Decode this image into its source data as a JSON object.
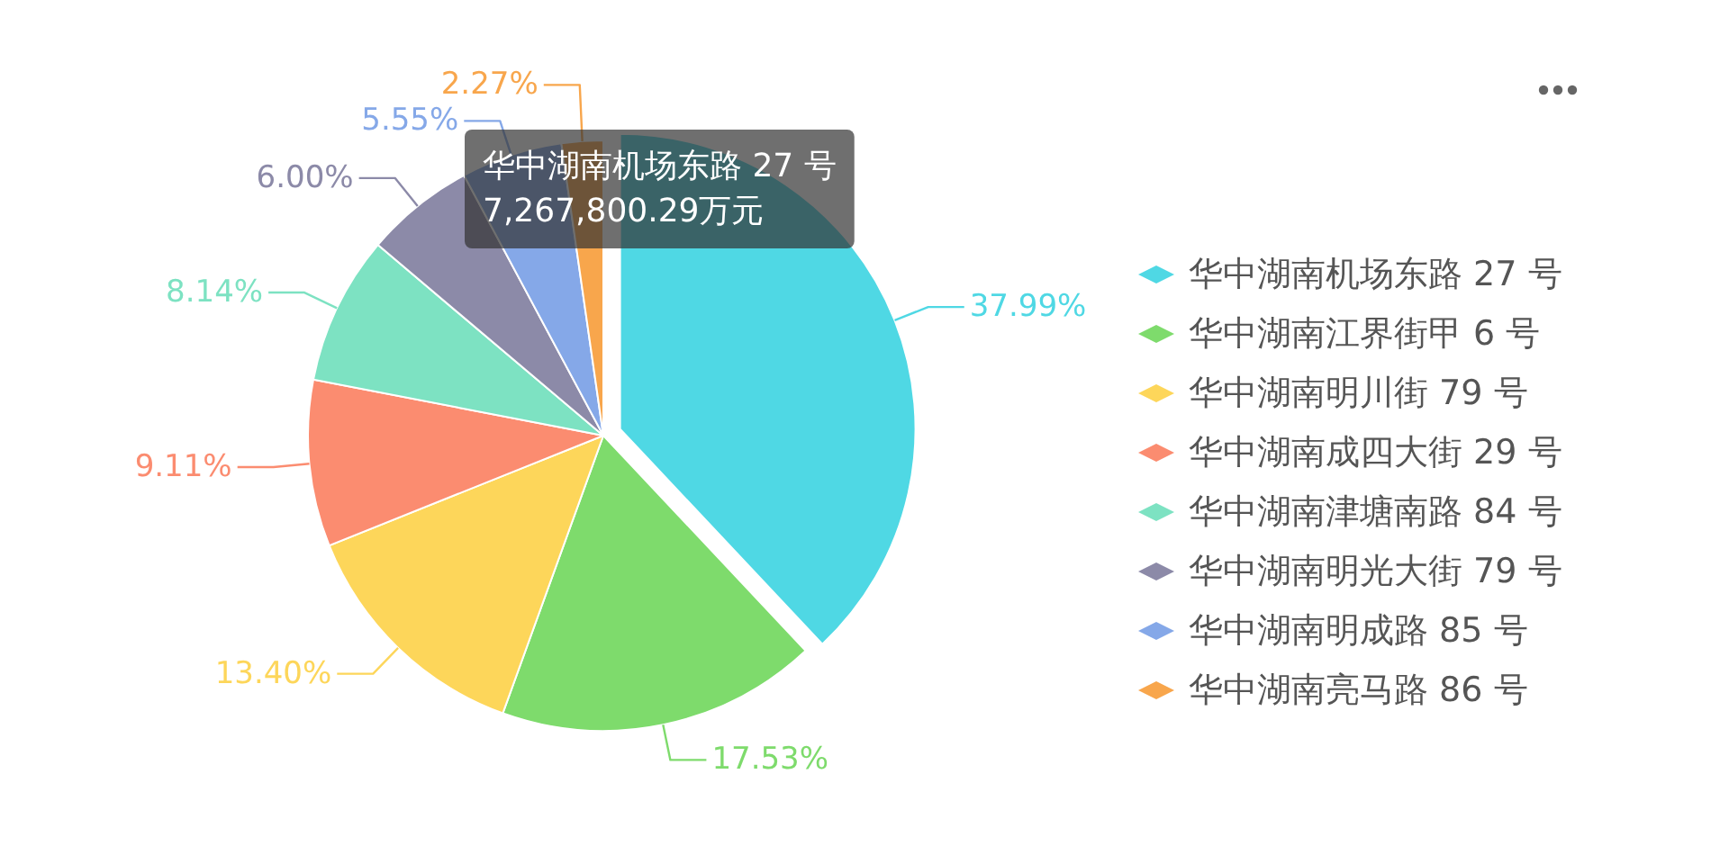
{
  "chart_data": {
    "type": "pie",
    "categories": [
      "华中湖南机场东路 27 号",
      "华中湖南江界街甲 6 号",
      "华中湖南明川街 79 号",
      "华中湖南成四大街 29 号",
      "华中湖南津塘南路 84 号",
      "华中湖南明光大街 79 号",
      "华中湖南明成路 85 号",
      "华中湖南亮马路 86 号"
    ],
    "values": [
      37.99,
      17.53,
      13.4,
      9.11,
      8.14,
      6.0,
      5.55,
      2.27
    ],
    "colors": [
      "#4fd8e4",
      "#7edb6c",
      "#fdd65a",
      "#fb8c70",
      "#7de2c2",
      "#8c8aa8",
      "#85a8e8",
      "#f8a64c"
    ],
    "value_labels": [
      "37.99%",
      "17.53%",
      "13.40%",
      "9.11%",
      "8.14%",
      "6.00%",
      "5.55%",
      "2.27%"
    ],
    "legend": "right",
    "annotations": [
      "华中湖南机场东路 27 号",
      "7,267,800.29万元"
    ]
  }
}
